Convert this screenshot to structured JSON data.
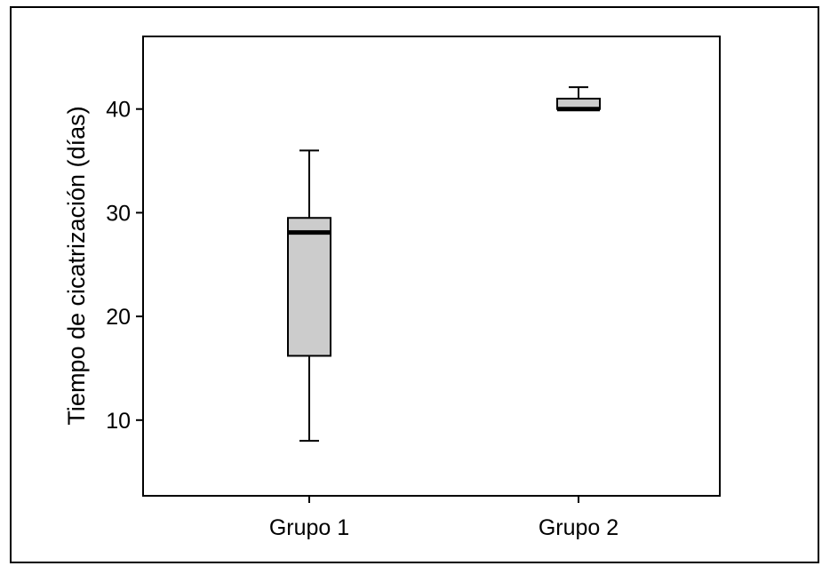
{
  "chart_data": {
    "type": "boxplot",
    "ylabel": "Tiempo de cicatrización (días)",
    "xlabel": "",
    "categories": [
      "Grupo 1",
      "Grupo 2"
    ],
    "yticks": [
      10,
      20,
      30,
      40
    ],
    "ylim": [
      2.7,
      47
    ],
    "grid": false,
    "legend": "none",
    "box_fill": "#cccccc",
    "line_color": "#000000",
    "boxes": [
      {
        "category": "Grupo 1",
        "min": 8,
        "q1": 16.2,
        "median": 28.1,
        "q3": 29.5,
        "max": 36
      },
      {
        "category": "Grupo 2",
        "min": 40,
        "q1": 40,
        "median": 40,
        "q3": 41,
        "max": 42.1
      }
    ]
  }
}
